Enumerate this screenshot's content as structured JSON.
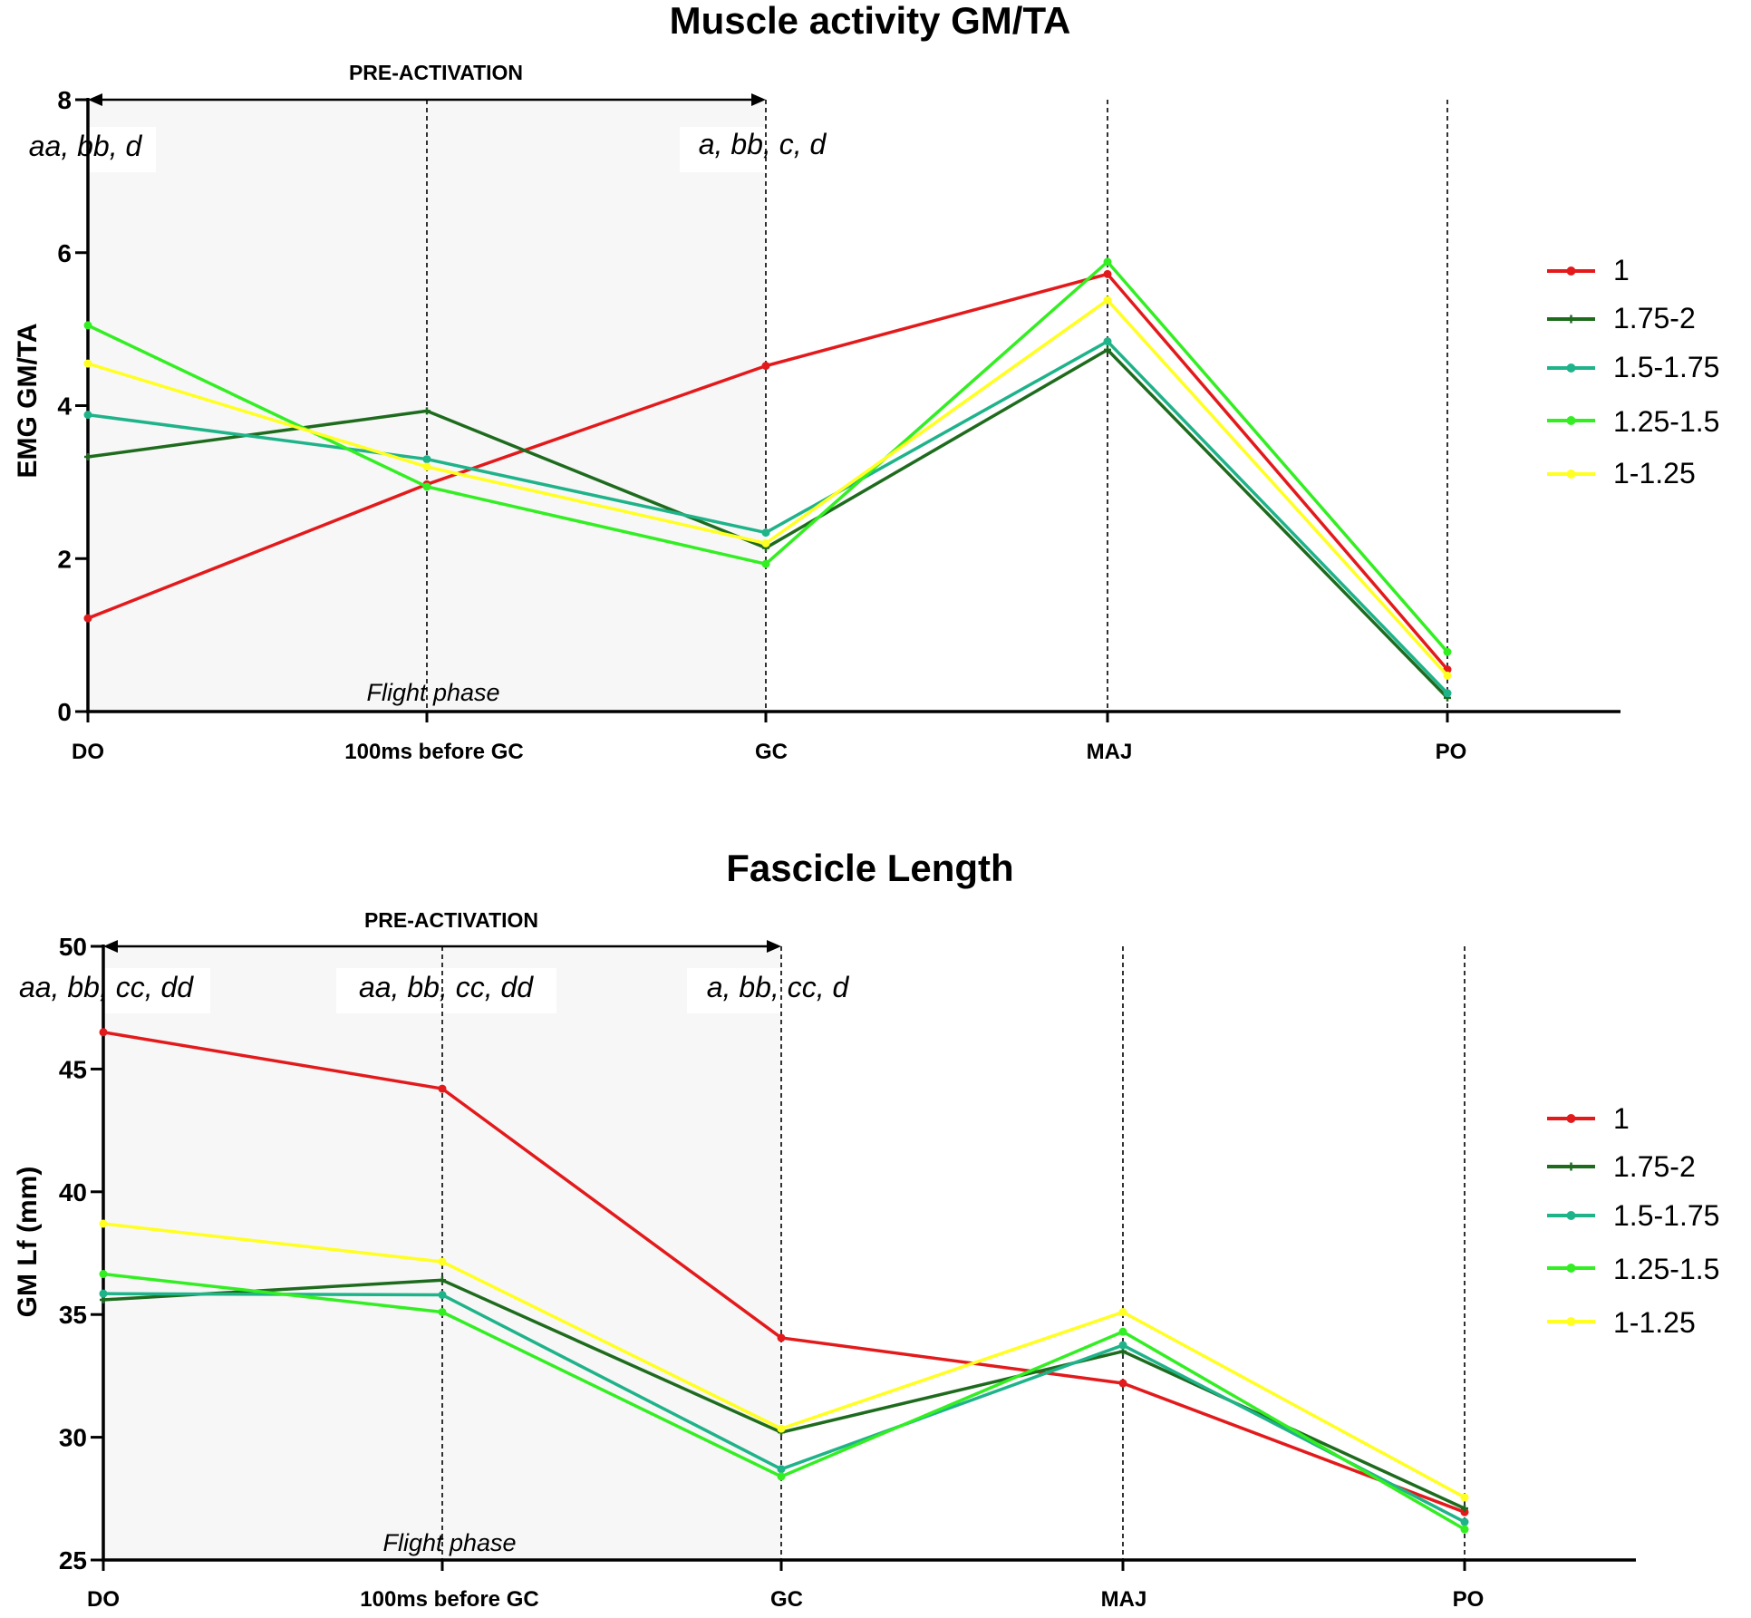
{
  "chart_data": [
    {
      "type": "line",
      "title": "Muscle activity GM/TA",
      "ylabel": "EMG GM/TA",
      "xlabel": "",
      "ylim": [
        0,
        8
      ],
      "yticks": [
        0,
        2,
        4,
        6,
        8
      ],
      "categories": [
        "DO",
        "100ms before GC",
        "GC",
        "MAJ",
        "PO"
      ],
      "preactivation_label": "PRE-ACTIVATION",
      "flight_label": "Flight phase",
      "annotations": [
        {
          "category_index": 0,
          "text": "aa, bb, d"
        },
        {
          "category_index": 2,
          "text": "a, bb, c, d"
        }
      ],
      "series": [
        {
          "name": "1",
          "color": "#e31a1c",
          "marker": "dot",
          "values": [
            1.22,
            2.97,
            4.52,
            5.72,
            0.55
          ]
        },
        {
          "name": "1.75-2",
          "color": "#1e6b1e",
          "marker": "plus",
          "values": [
            3.33,
            3.93,
            2.14,
            4.73,
            0.18
          ]
        },
        {
          "name": "1.5-1.75",
          "color": "#1fb38a",
          "marker": "dot",
          "values": [
            3.88,
            3.3,
            2.34,
            4.84,
            0.24
          ]
        },
        {
          "name": "1.25-1.5",
          "color": "#33ee22",
          "marker": "dot",
          "values": [
            5.05,
            2.94,
            1.93,
            5.88,
            0.78
          ]
        },
        {
          "name": "1-1.25",
          "color": "#ffff22",
          "marker": "dot",
          "values": [
            4.55,
            3.2,
            2.2,
            5.38,
            0.47
          ]
        }
      ]
    },
    {
      "type": "line",
      "title": "Fascicle Length",
      "ylabel": "GM Lf (mm)",
      "xlabel": "",
      "ylim": [
        25,
        50
      ],
      "yticks": [
        25,
        30,
        35,
        40,
        45,
        50
      ],
      "categories": [
        "DO",
        "100ms before GC",
        "GC",
        "MAJ",
        "PO"
      ],
      "preactivation_label": "PRE-ACTIVATION",
      "flight_label": "Flight phase",
      "annotations": [
        {
          "category_index": 0,
          "text": "aa, bb, cc, dd"
        },
        {
          "category_index": 1,
          "text": "aa, bb, cc, dd"
        },
        {
          "category_index": 2,
          "text": "a, bb, cc, d"
        }
      ],
      "series": [
        {
          "name": "1",
          "color": "#e31a1c",
          "marker": "dot",
          "values": [
            46.5,
            44.2,
            34.05,
            32.2,
            26.95
          ]
        },
        {
          "name": "1.75-2",
          "color": "#1e6b1e",
          "marker": "plus",
          "values": [
            35.6,
            36.4,
            30.2,
            33.5,
            27.1
          ]
        },
        {
          "name": "1.5-1.75",
          "color": "#1fb38a",
          "marker": "dot",
          "values": [
            35.85,
            35.8,
            28.7,
            33.75,
            26.55
          ]
        },
        {
          "name": "1.25-1.5",
          "color": "#33ee22",
          "marker": "dot",
          "values": [
            36.65,
            35.1,
            28.4,
            34.3,
            26.25
          ]
        },
        {
          "name": "1-1.25",
          "color": "#ffff22",
          "marker": "dot",
          "values": [
            38.7,
            37.15,
            30.35,
            35.1,
            27.55
          ]
        }
      ]
    }
  ]
}
